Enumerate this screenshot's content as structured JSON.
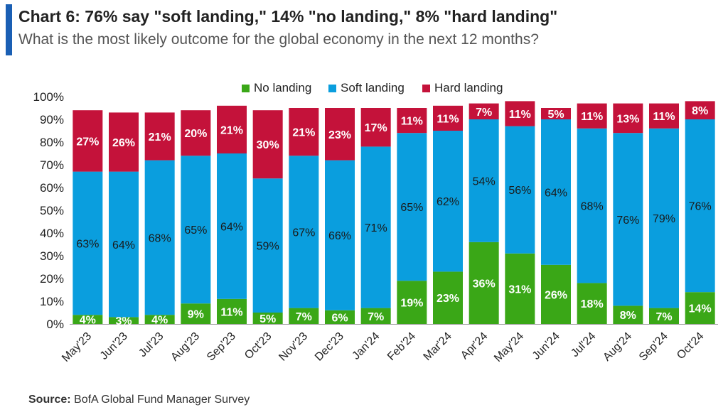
{
  "header": {
    "title": "Chart 6: 76% say \"soft landing,\" 14% \"no landing,\" 8% \"hard landing\"",
    "subtitle": "What is the most likely outcome for the global economy in the next 12 months?"
  },
  "source": {
    "label": "Source:",
    "text": "BofA Global Fund Manager Survey"
  },
  "colors": {
    "no_landing": "#3aa717",
    "soft_landing": "#0a9ede",
    "hard_landing": "#c4123a",
    "accent": "#1a5fb4"
  },
  "chart_data": {
    "type": "bar",
    "stacked": true,
    "title": "Chart 6: 76% say \"soft landing,\" 14% \"no landing,\" 8% \"hard landing\"",
    "subtitle": "What is the most likely outcome for the global economy in the next 12 months?",
    "categories": [
      "May'23",
      "Jun'23",
      "Jul'23",
      "Aug'23",
      "Sep'23",
      "Oct'23",
      "Nov'23",
      "Dec'23",
      "Jan'24",
      "Feb'24",
      "Mar'24",
      "Apr'24",
      "May'24",
      "Jun'24",
      "Jul'24",
      "Aug'24",
      "Sep'24",
      "Oct'24"
    ],
    "series": [
      {
        "name": "No landing",
        "values": [
          4,
          3,
          4,
          9,
          11,
          5,
          7,
          6,
          7,
          19,
          23,
          36,
          31,
          26,
          18,
          8,
          7,
          14
        ]
      },
      {
        "name": "Soft landing",
        "values": [
          63,
          64,
          68,
          65,
          64,
          59,
          67,
          66,
          71,
          65,
          62,
          54,
          56,
          64,
          68,
          76,
          79,
          76
        ]
      },
      {
        "name": "Hard landing",
        "values": [
          27,
          26,
          21,
          20,
          21,
          30,
          21,
          23,
          17,
          11,
          11,
          7,
          11,
          5,
          11,
          13,
          11,
          8
        ]
      }
    ],
    "ylim": [
      0,
      100
    ],
    "yticks": [
      "0%",
      "10%",
      "20%",
      "30%",
      "40%",
      "50%",
      "60%",
      "70%",
      "80%",
      "90%",
      "100%"
    ],
    "legend_position": "top",
    "grid": false
  }
}
